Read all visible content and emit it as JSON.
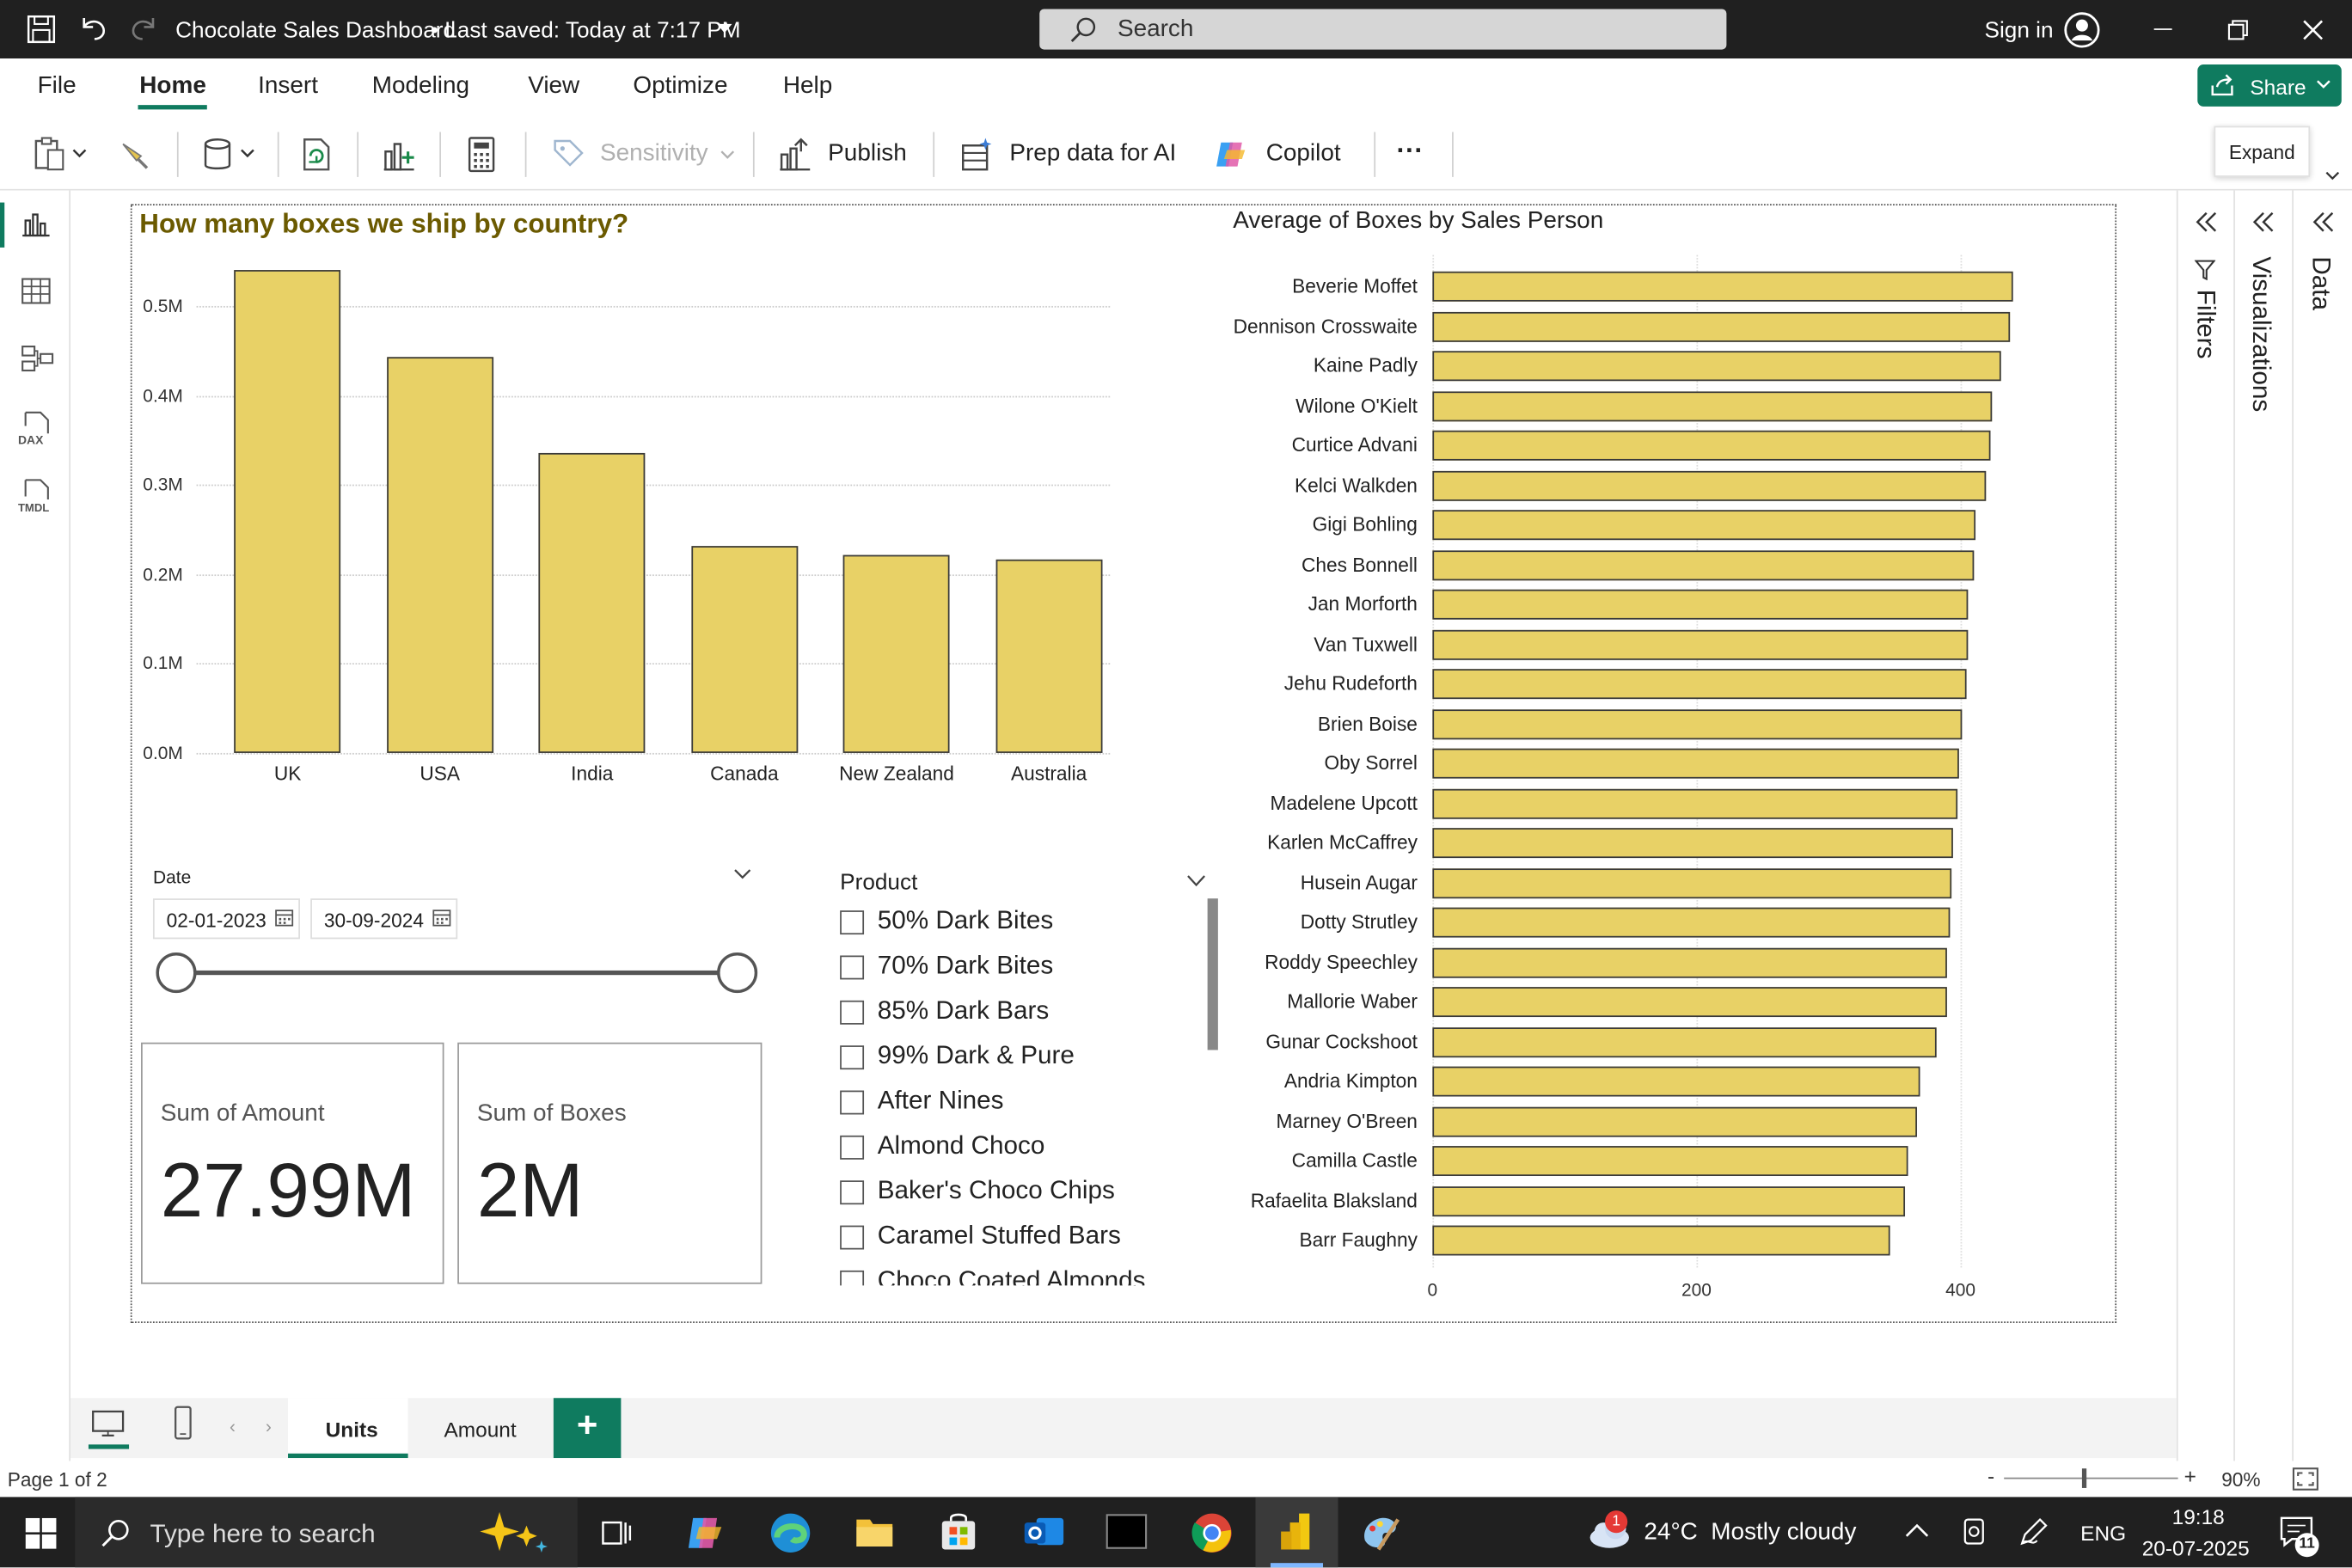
{
  "app": {
    "window_title": "Chocolate Sales Dashboard",
    "saved_status": "• Last saved: Today at 7:17 PM",
    "search_placeholder": "Search",
    "sign_in": "Sign in"
  },
  "menu": {
    "items": [
      "File",
      "Home",
      "Insert",
      "Modeling",
      "View",
      "Optimize",
      "Help"
    ],
    "active": "Home",
    "share_label": "Share"
  },
  "toolbar": {
    "sensitivity": "Sensitivity",
    "publish": "Publish",
    "prep_data": "Prep data for AI",
    "copilot": "Copilot",
    "more": "···"
  },
  "tooltip": {
    "expand": "Expand"
  },
  "panes": {
    "filters": "Filters",
    "visualizations": "Visualizations",
    "data": "Data"
  },
  "colors": {
    "bar_fill": "#e8d166",
    "accent_green": "#0f7b5f",
    "title_olive": "#6b5a00"
  },
  "country_chart": {
    "chart_data": {
      "type": "bar",
      "title": "How many boxes we ship by country?",
      "categories": [
        "UK",
        "USA",
        "India",
        "Canada",
        "New Zealand",
        "Australia"
      ],
      "values": [
        0.54,
        0.443,
        0.335,
        0.232,
        0.221,
        0.217
      ],
      "y_tick_labels": [
        "0.0M",
        "0.1M",
        "0.2M",
        "0.3M",
        "0.4M",
        "0.5M"
      ],
      "ylim": [
        0,
        0.55
      ],
      "unit": "M"
    }
  },
  "salesperson_chart": {
    "chart_data": {
      "type": "bar",
      "orientation": "horizontal",
      "title": "Average of Boxes by Sales Person",
      "categories": [
        "Beverie Moffet",
        "Dennison Crosswaite",
        "Kaine Padly",
        "Wilone O'Kielt",
        "Curtice Advani",
        "Kelci Walkden",
        "Gigi Bohling",
        "Ches Bonnell",
        "Jan Morforth",
        "Van Tuxwell",
        "Jehu Rudeforth",
        "Brien Boise",
        "Oby Sorrel",
        "Madelene Upcott",
        "Karlen McCaffrey",
        "Husein Augar",
        "Dotty Strutley",
        "Roddy Speechley",
        "Mallorie Waber",
        "Gunar Cockshoot",
        "Andria Kimpton",
        "Marney O'Breen",
        "Camilla Castle",
        "Rafaelita Blaksland",
        "Barr Faughny"
      ],
      "values": [
        440,
        438,
        431,
        424,
        423,
        419,
        411,
        410,
        406,
        406,
        404,
        401,
        399,
        398,
        394,
        393,
        392,
        390,
        390,
        382,
        369,
        367,
        360,
        358,
        347
      ],
      "x_tick_labels": [
        "0",
        "200",
        "400"
      ],
      "xlim": [
        0,
        450
      ]
    }
  },
  "date_slicer": {
    "label": "Date",
    "start": "02-01-2023",
    "end": "30-09-2024"
  },
  "product_slicer": {
    "label": "Product",
    "items": [
      "50% Dark Bites",
      "70% Dark Bites",
      "85% Dark Bars",
      "99% Dark & Pure",
      "After Nines",
      "Almond Choco",
      "Baker's Choco Chips",
      "Caramel Stuffed Bars",
      "Choco Coated Almonds"
    ]
  },
  "cards": {
    "amount": {
      "label": "Sum of Amount",
      "value": "27.99M"
    },
    "boxes": {
      "label": "Sum of Boxes",
      "value": "2M"
    }
  },
  "page_tabs": {
    "tabs": [
      "Units",
      "Amount"
    ],
    "active": "Units",
    "add": "+"
  },
  "status": {
    "page": "Page 1 of 2",
    "zoom": "90%",
    "zoom_level": 0.9
  },
  "taskbar": {
    "search_placeholder": "Type here to search",
    "weather": "24°C  Mostly cloudy",
    "lang": "ENG",
    "time": "19:18",
    "date": "20-07-2025",
    "notif_badge": "1",
    "notif_count": "11"
  }
}
